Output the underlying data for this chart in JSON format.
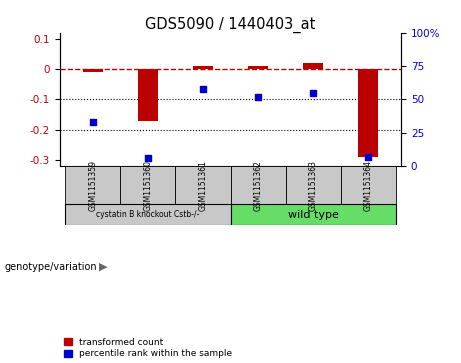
{
  "title": "GDS5090 / 1440403_at",
  "samples": [
    "GSM1151359",
    "GSM1151360",
    "GSM1151361",
    "GSM1151362",
    "GSM1151363",
    "GSM1151364"
  ],
  "red_values": [
    -0.01,
    -0.17,
    0.01,
    0.01,
    0.02,
    -0.29
  ],
  "blue_values": [
    33,
    6,
    58,
    52,
    55,
    7
  ],
  "ylim_left": [
    -0.32,
    0.12
  ],
  "ylim_right": [
    0,
    100
  ],
  "yticks_left": [
    0.1,
    0.0,
    -0.1,
    -0.2,
    -0.3
  ],
  "yticks_right": [
    100,
    75,
    50,
    25,
    0
  ],
  "bar_color": "#bb0000",
  "dot_color": "#0000cc",
  "bg_color": "#ffffff",
  "sample_bg": "#c8c8c8",
  "group1_color": "#c8c8c8",
  "group2_color": "#66dd66",
  "legend_red": "transformed count",
  "legend_blue": "percentile rank within the sample",
  "genotype_label": "genotype/variation",
  "group_label_1": "cystatin B knockout Cstb-/-",
  "group_label_2": "wild type"
}
